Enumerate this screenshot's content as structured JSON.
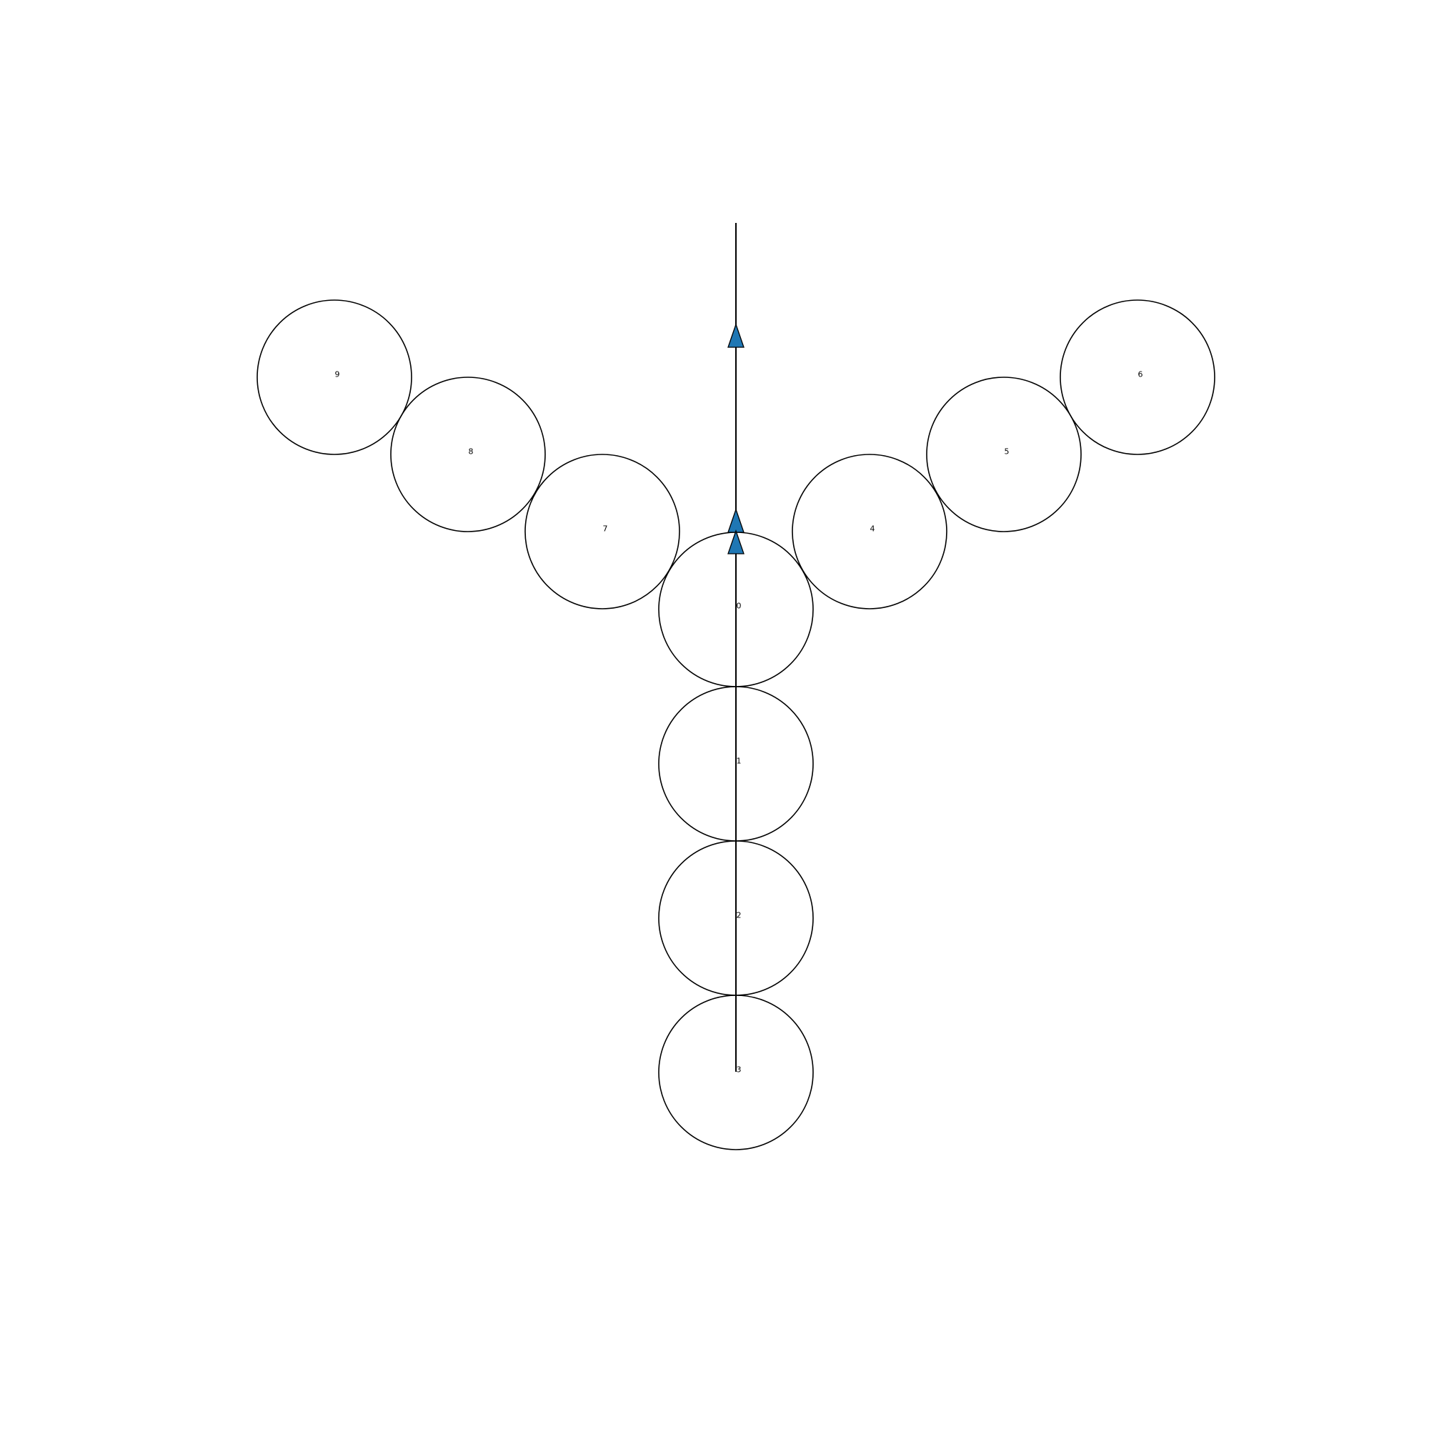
{
  "diagram": {
    "nodes": [
      {
        "id": "node-0",
        "label": "0"
      },
      {
        "id": "node-1",
        "label": "1"
      },
      {
        "id": "node-2",
        "label": "2"
      },
      {
        "id": "node-3",
        "label": "3"
      },
      {
        "id": "node-4",
        "label": "4"
      },
      {
        "id": "node-5",
        "label": "5"
      },
      {
        "id": "node-6",
        "label": "6"
      },
      {
        "id": "node-7",
        "label": "7"
      },
      {
        "id": "node-8",
        "label": "8"
      },
      {
        "id": "node-9",
        "label": "9"
      }
    ],
    "arrow_color": "#1f77b4",
    "line_color": "#000000"
  }
}
